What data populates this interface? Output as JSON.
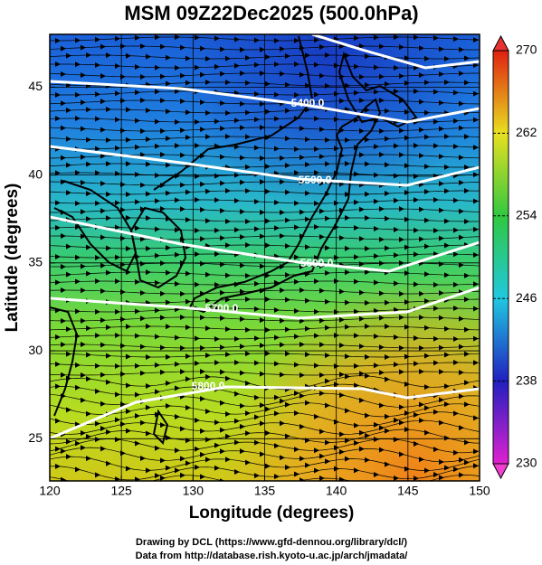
{
  "chart_data": {
    "type": "map",
    "title": "MSM 09Z22Dec2025 (500.0hPa)",
    "xlabel": "Longitude (degrees)",
    "ylabel": "Latitude  (degrees)",
    "xlim": [
      120,
      150
    ],
    "xticks": [
      120,
      125,
      130,
      135,
      140,
      145,
      150
    ],
    "ylim": [
      22.6,
      48
    ],
    "yticks": [
      25,
      30,
      35,
      40,
      45
    ],
    "grid": true,
    "colorbar": {
      "lim": [
        230,
        270
      ],
      "ticks": [
        230,
        238,
        246,
        254,
        262,
        270
      ]
    },
    "contours": {
      "values": [
        5400,
        5500,
        5600,
        5700,
        5800
      ],
      "value_labels": [
        "5400.0",
        "5500.0",
        "5600.0",
        "5700.0",
        "5800.0"
      ]
    },
    "footer": [
      "Drawing by DCL (https://www.gfd-dennou.org/library/dcl/)",
      "Data from http://database.rish.kyoto-u.ac.jp/arch/jmadata/"
    ]
  }
}
